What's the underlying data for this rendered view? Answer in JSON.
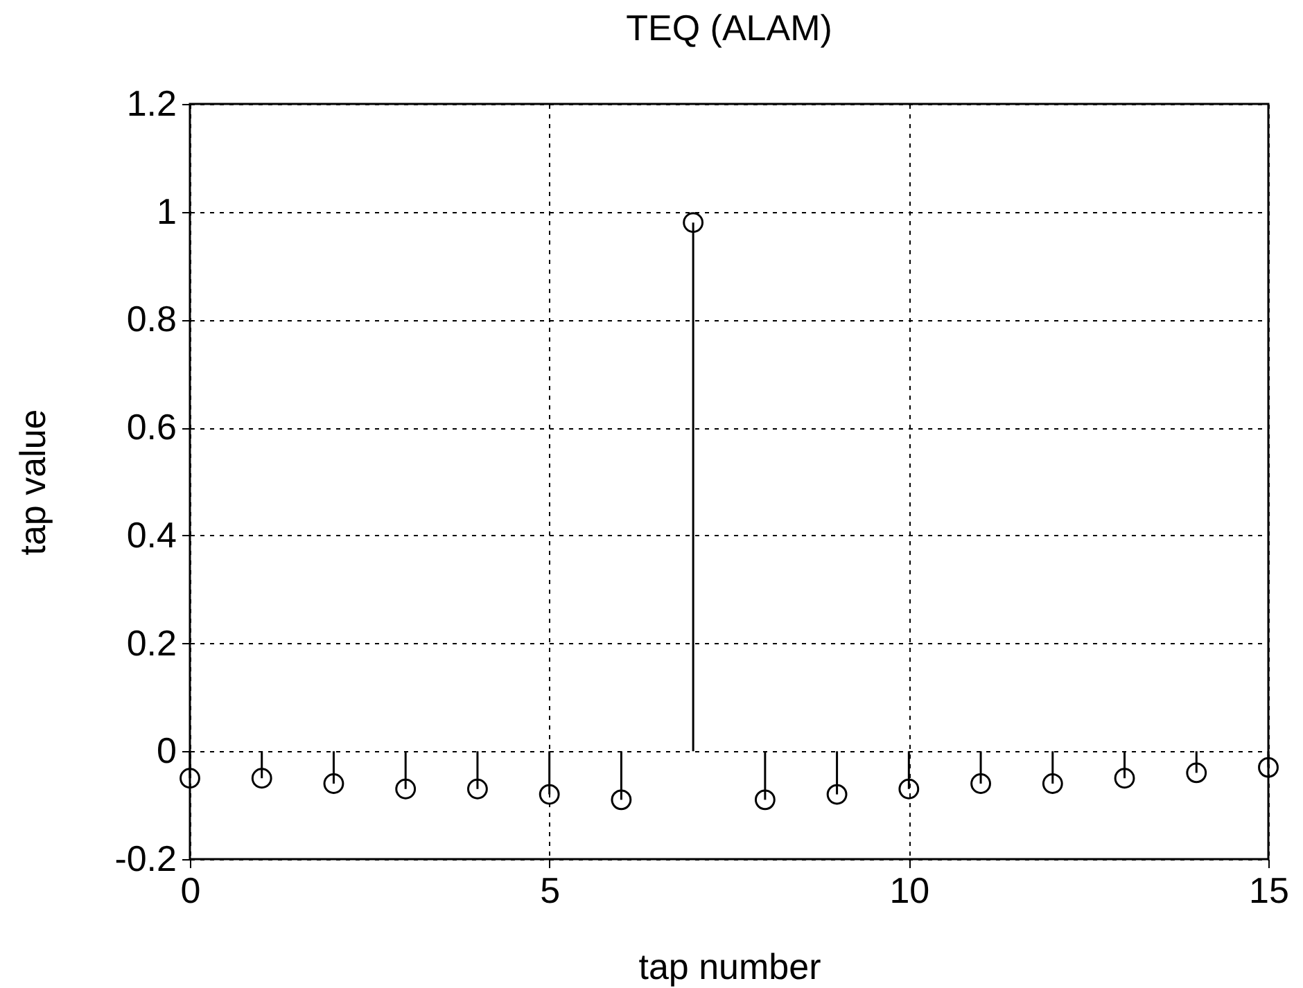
{
  "chart_data": {
    "type": "lollipop",
    "title": "TEQ (ALAM)",
    "xlabel": "tap number",
    "ylabel": "tap value",
    "x": [
      0,
      1,
      2,
      3,
      4,
      5,
      6,
      7,
      8,
      9,
      10,
      11,
      12,
      13,
      14,
      15
    ],
    "values": [
      -0.05,
      -0.05,
      -0.06,
      -0.07,
      -0.07,
      -0.08,
      -0.09,
      0.98,
      -0.09,
      -0.08,
      -0.07,
      -0.06,
      -0.06,
      -0.05,
      -0.04,
      -0.03
    ],
    "color": "#000000",
    "marker": "circle",
    "xlim": [
      0,
      15
    ],
    "xticks": [
      0,
      5,
      10,
      15
    ],
    "ylim": [
      -0.2,
      1.2
    ],
    "yticks": [
      -0.2,
      0,
      0.2,
      0.4,
      0.6,
      0.8,
      1,
      1.2
    ],
    "grid": true
  }
}
